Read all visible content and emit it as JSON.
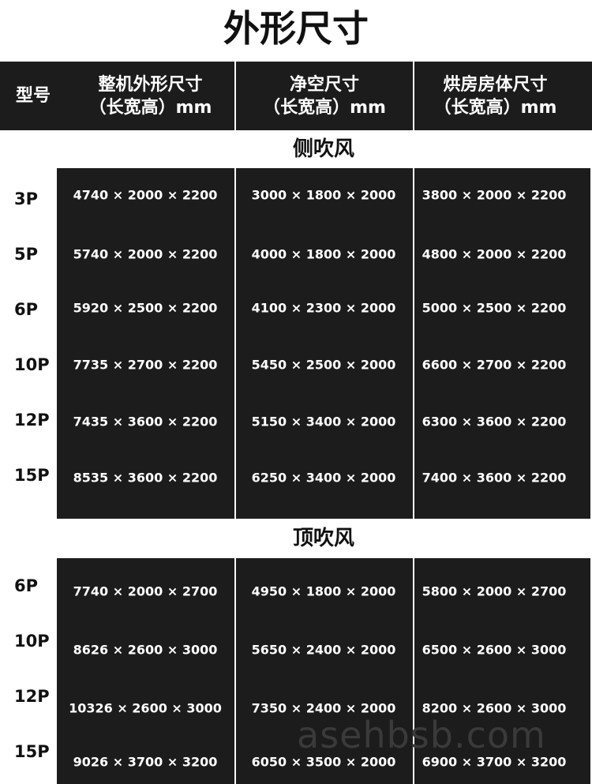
{
  "title": "外形尺寸",
  "header": {
    "model": "型号",
    "columns": [
      {
        "line1": "整机外形尺寸",
        "line2": "（长宽高）mm"
      },
      {
        "line1": "净空尺寸",
        "line2": "（长宽高）mm"
      },
      {
        "line1": "烘房房体尺寸",
        "line2": "（长宽高）mm"
      }
    ]
  },
  "sections": [
    {
      "name": "侧吹风",
      "rows": [
        {
          "model": "3P",
          "values": [
            "4740 × 2000 × 2200",
            "3000 × 1800 × 2000",
            "3800 × 2000 × 2200"
          ]
        },
        {
          "model": "5P",
          "values": [
            "5740 × 2000 × 2200",
            "4000 × 1800 × 2000",
            "4800 × 2000 × 2200"
          ]
        },
        {
          "model": "6P",
          "values": [
            "5920 × 2500 × 2200",
            "4100 × 2300 × 2000",
            "5000 × 2500 × 2200"
          ]
        },
        {
          "model": "10P",
          "values": [
            "7735 × 2700 × 2200",
            "5450 × 2500 × 2000",
            "6600 × 2700 × 2200"
          ]
        },
        {
          "model": "12P",
          "values": [
            "7435 × 3600 × 2200",
            "5150 × 3400 × 2000",
            "6300 × 3600 × 2200"
          ]
        },
        {
          "model": "15P",
          "values": [
            "8535 × 3600 × 2200",
            "6250 × 3400 × 2000",
            "7400 × 3600 × 2200"
          ]
        }
      ]
    },
    {
      "name": "顶吹风",
      "rows": [
        {
          "model": "6P",
          "values": [
            "7740 × 2000 × 2700",
            "4950 × 1800 × 2000",
            "5800 × 2000 × 2700"
          ]
        },
        {
          "model": "10P",
          "values": [
            "8626 × 2600 × 3000",
            "5650 × 2400 × 2000",
            "6500 × 2600 × 3000"
          ]
        },
        {
          "model": "12P",
          "values": [
            "10326 × 2600 × 3000",
            "7350 × 2400 × 2000",
            "8200 × 2600 × 3000"
          ]
        },
        {
          "model": "15P",
          "values": [
            "9026 × 3700 × 3200",
            "6050 × 3500 × 2000",
            "6900 × 3700 × 3200"
          ]
        }
      ]
    }
  ],
  "watermark": "asehbsb.com"
}
